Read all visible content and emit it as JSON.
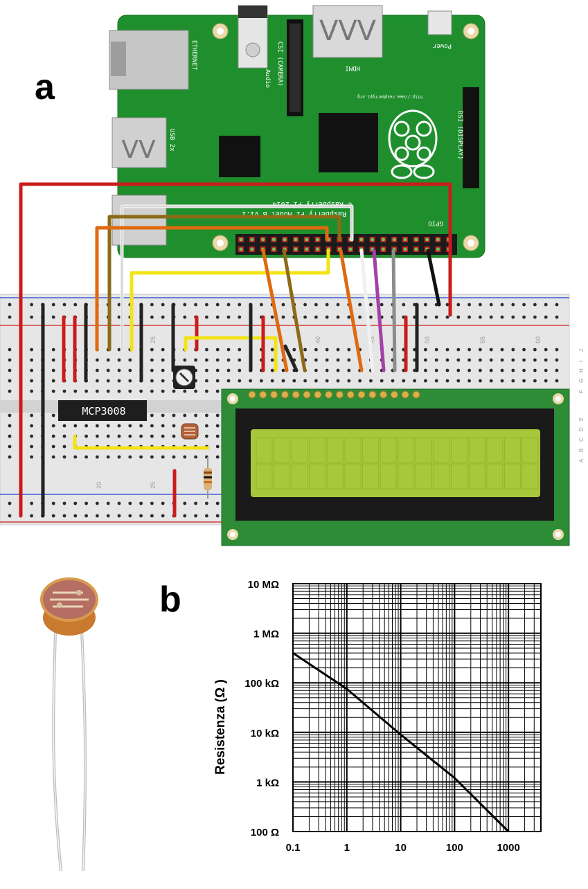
{
  "panel_a": {
    "label": "a",
    "board": {
      "ethernet": "ETHERNET",
      "audio": "Audio",
      "csi": "CSI (CAMERA)",
      "hdmi": "HDMI",
      "power": "Power",
      "usb": "USB 2x",
      "dsi": "DSI (DISPLAY)",
      "url": "http://www.raspberrypi.org",
      "copyright": "© Raspberry Pi 2014",
      "model": "Raspberry Pi Model B v1.1",
      "gpio": "GPIO"
    },
    "chip_label": "MCP3008",
    "breadboard_numbers_top": [
      "25",
      "40",
      "45",
      "50",
      "55",
      "60"
    ],
    "breadboard_numbers_bottom": [
      "20",
      "25"
    ],
    "breadboard_rows_top": [
      "J",
      "I",
      "H",
      "G",
      "F"
    ],
    "breadboard_rows_bottom": [
      "E",
      "D",
      "C",
      "B",
      "A"
    ],
    "colors": {
      "pcb": "#1f8f2e",
      "breadboard": "#e8e8e8",
      "lcd_screen": "#a7c83a",
      "lcd_pcb": "#2e8b36"
    }
  },
  "panel_b": {
    "label": "b",
    "chart_data": {
      "type": "line",
      "xscale": "log",
      "yscale": "log",
      "xlim": [
        0.1,
        4000
      ],
      "ylim": [
        100,
        10000000
      ],
      "xticks": [
        "0.1",
        "1",
        "10",
        "100",
        "1000"
      ],
      "yticks": [
        "100 Ω",
        "1 kΩ",
        "10 kΩ",
        "100 kΩ",
        "1 MΩ",
        "10 MΩ"
      ],
      "ylabel": "Resistenza (Ω )",
      "xlabel": "",
      "grid": true,
      "series": [
        {
          "x": [
            0.1,
            1,
            10,
            100,
            1000
          ],
          "y": [
            400000,
            75000,
            9000,
            1200,
            100
          ]
        }
      ]
    }
  }
}
